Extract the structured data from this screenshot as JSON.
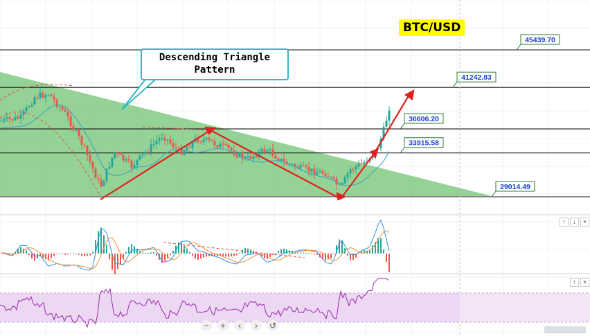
{
  "chart_data": [
    {
      "type": "line",
      "pane": "price",
      "pair": "BTC/USD",
      "annotation": "Descending Triangle\nPattern",
      "price_levels": [
        45439.7,
        41242.83,
        36606.2,
        33915.58,
        29014.49
      ],
      "price_level_labels": [
        "45439.70",
        "41242.83",
        "36606.20",
        "33915.58",
        "29014.49"
      ],
      "y_scale": {
        "min": 29014.49,
        "max": 45439.7
      },
      "colors": {
        "bull": "#26a69a",
        "bear": "#ef5350",
        "triangle_fill": "#66c068",
        "arrows": "#e02020",
        "ma": "#3aa0c8"
      }
    },
    {
      "type": "line",
      "pane": "macd",
      "series": [
        {
          "values": []
        },
        {
          "values": []
        }
      ],
      "colors": {
        "macd": "#2b8fd6",
        "signal": "#f0903a",
        "hist_pos": "#26a69a",
        "hist_neg": "#ef5350"
      }
    },
    {
      "type": "line",
      "pane": "rsi",
      "colors": {
        "rsi": "#9c27b0",
        "band": "#f3e5f5"
      }
    }
  ],
  "pane_controls": {
    "macd": [
      "↑",
      "↓",
      "×"
    ],
    "rsi": [
      "↑",
      "×"
    ]
  },
  "nav_controls": [
    "−",
    "+",
    "‹",
    "›",
    "↺"
  ]
}
